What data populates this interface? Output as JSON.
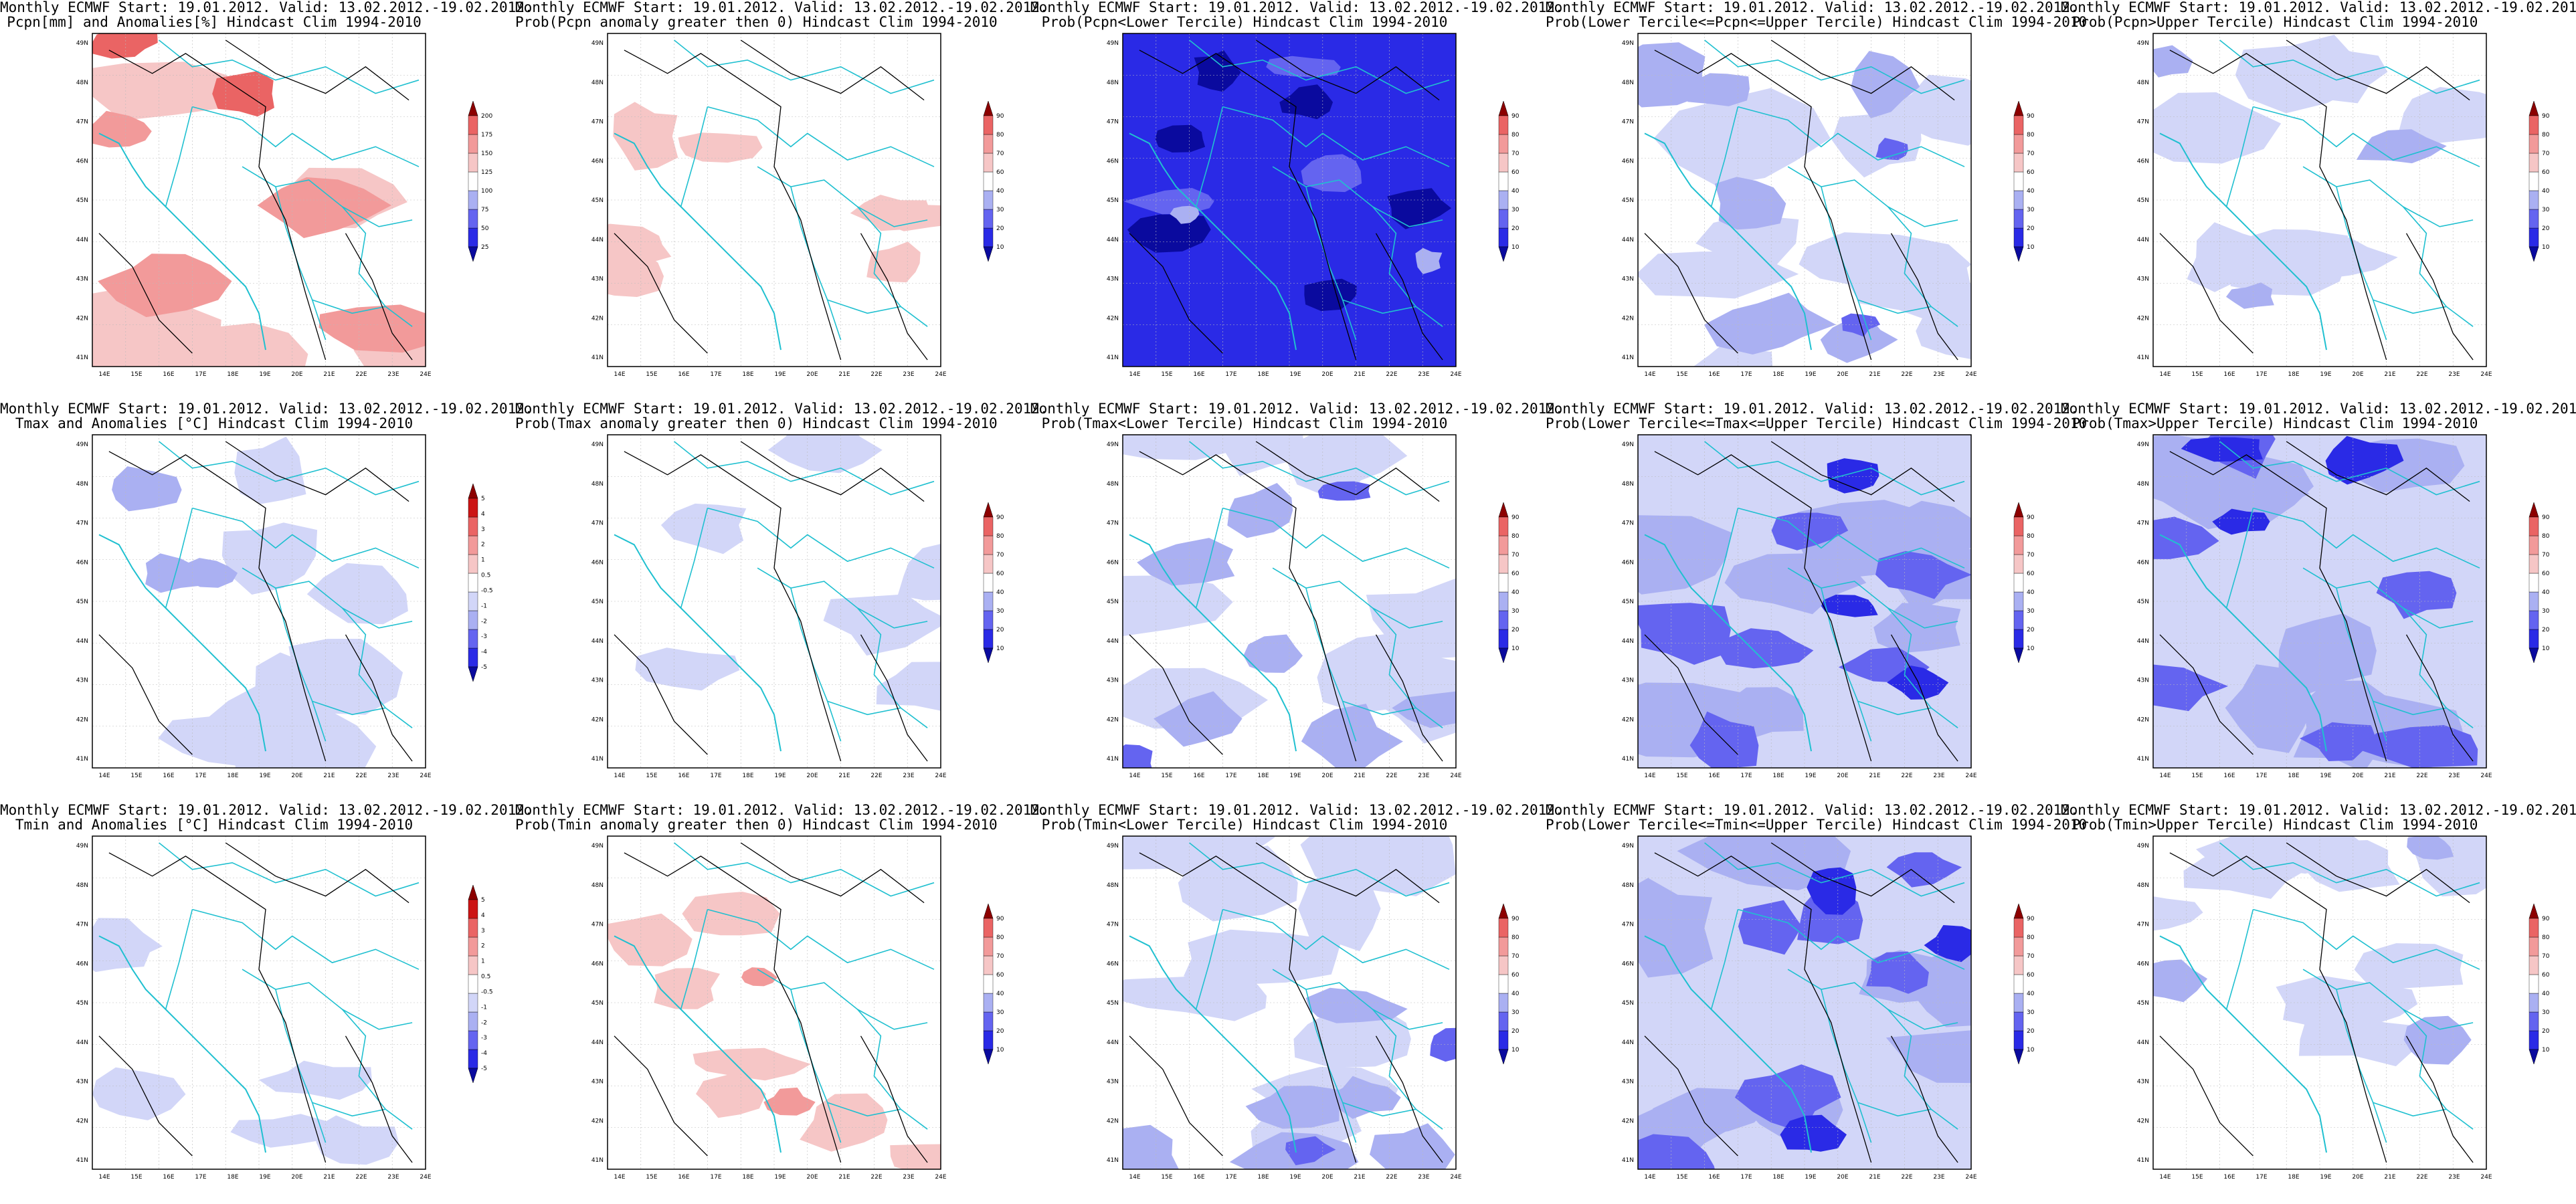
{
  "header_line": "Monthly ECMWF Start: 19.01.2012. Valid: 13.02.2012.-19.02.2012.",
  "lat_ticks": [
    "41N",
    "42N",
    "43N",
    "44N",
    "45N",
    "46N",
    "47N",
    "48N",
    "49N"
  ],
  "lon_ticks": [
    "14E",
    "15E",
    "16E",
    "17E",
    "18E",
    "19E",
    "20E",
    "21E",
    "22E",
    "23E",
    "24E"
  ],
  "legends": {
    "pcpn_anom": [
      "25",
      "50",
      "75",
      "100",
      "125",
      "150",
      "175",
      "200"
    ],
    "temp_anom": [
      "-5",
      "-4",
      "-3",
      "-2",
      "-1",
      "-0.5",
      "0.5",
      "1",
      "2",
      "3",
      "4",
      "5"
    ],
    "prob": [
      "10",
      "20",
      "30",
      "40",
      "60",
      "70",
      "80",
      "90"
    ]
  },
  "colors": {
    "deep_blue": "#0a0a9e",
    "blue": "#2a2ae6",
    "mid_blue": "#6464f0",
    "light_blue": "#aab0f2",
    "pale_blue": "#d2d6f8",
    "pale_red": "#f6c6c6",
    "light_red": "#f29a9a",
    "red": "#ea6464",
    "dark_red": "#cc1414",
    "deep_red": "#8c0000",
    "coast": "#20c0d0",
    "contour": "#000000"
  },
  "panels": [
    {
      "id": "r1c1",
      "row": 0,
      "col": 0,
      "title2": "Pcpn[mm] and Anomalies[%] Hindcast Clim 1994-2010",
      "legend": "pcpn_anom",
      "fill": "pcpn"
    },
    {
      "id": "r1c2",
      "row": 0,
      "col": 1,
      "title2": "Prob(Pcpn anomaly greater then 0) Hindcast Clim 1994-2010",
      "legend": "prob",
      "fill": "redlight"
    },
    {
      "id": "r1c3",
      "row": 0,
      "col": 2,
      "title2": "Prob(Pcpn<Lower Tercile) Hindcast Clim 1994-2010",
      "legend": "prob",
      "fill": "deepblue"
    },
    {
      "id": "r1c4",
      "row": 0,
      "col": 3,
      "title2": "Prob(Lower Tercile<=Pcpn<=Upper Tercile) Hindcast Clim 1994-2010",
      "legend": "prob",
      "fill": "bluepatchy"
    },
    {
      "id": "r1c5",
      "row": 0,
      "col": 4,
      "title2": "Prob(Pcpn>Upper Tercile) Hindcast Clim 1994-2010",
      "legend": "prob",
      "fill": "bluelight"
    },
    {
      "id": "r2c1",
      "row": 1,
      "col": 0,
      "title2": "Tmax and Anomalies [°C] Hindcast Clim 1994-2010",
      "legend": "temp_anom",
      "fill": "bluelight"
    },
    {
      "id": "r2c2",
      "row": 1,
      "col": 1,
      "title2": "Prob(Tmax anomaly greater then 0) Hindcast Clim 1994-2010",
      "legend": "prob",
      "fill": "bluefaint"
    },
    {
      "id": "r2c3",
      "row": 1,
      "col": 2,
      "title2": "Prob(Tmax<Lower Tercile) Hindcast Clim 1994-2010",
      "legend": "prob",
      "fill": "bluepatchy"
    },
    {
      "id": "r2c4",
      "row": 1,
      "col": 3,
      "title2": "Prob(Lower Tercile<=Tmax<=Upper Tercile) Hindcast Clim 1994-2010",
      "legend": "prob",
      "fill": "bluestrong"
    },
    {
      "id": "r2c5",
      "row": 1,
      "col": 4,
      "title2": "Prob(Tmax>Upper Tercile) Hindcast Clim 1994-2010",
      "legend": "prob",
      "fill": "bluestrong"
    },
    {
      "id": "r3c1",
      "row": 2,
      "col": 0,
      "title2": "Tmin and Anomalies [°C] Hindcast Clim 1994-2010",
      "legend": "temp_anom",
      "fill": "bluefaint"
    },
    {
      "id": "r3c2",
      "row": 2,
      "col": 1,
      "title2": "Prob(Tmin anomaly greater then 0) Hindcast Clim 1994-2010",
      "legend": "prob",
      "fill": "redsouth"
    },
    {
      "id": "r3c3",
      "row": 2,
      "col": 2,
      "title2": "Prob(Tmin<Lower Tercile) Hindcast Clim 1994-2010",
      "legend": "prob",
      "fill": "bluepatchy"
    },
    {
      "id": "r3c4",
      "row": 2,
      "col": 3,
      "title2": "Prob(Lower Tercile<=Tmin<=Upper Tercile) Hindcast Clim 1994-2010",
      "legend": "prob",
      "fill": "bluestrong"
    },
    {
      "id": "r3c5",
      "row": 2,
      "col": 4,
      "title2": "Prob(Tmin>Upper Tercile) Hindcast Clim 1994-2010",
      "legend": "prob",
      "fill": "bluelight"
    }
  ]
}
